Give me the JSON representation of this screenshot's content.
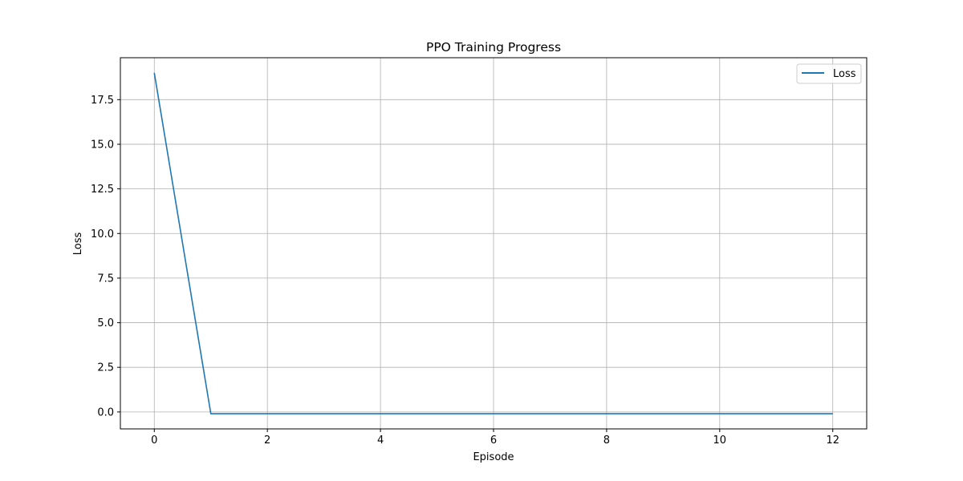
{
  "chart_data": {
    "type": "line",
    "title": "PPO Training Progress",
    "xlabel": "Episode",
    "ylabel": "Loss",
    "xlim": [
      -0.6,
      12.6
    ],
    "ylim": [
      -0.95,
      19.85
    ],
    "xticks": [
      0,
      2,
      4,
      6,
      8,
      10,
      12
    ],
    "xtick_labels": [
      "0",
      "2",
      "4",
      "6",
      "8",
      "10",
      "12"
    ],
    "yticks": [
      0.0,
      2.5,
      5.0,
      7.5,
      10.0,
      12.5,
      15.0,
      17.5
    ],
    "ytick_labels": [
      "0.0",
      "2.5",
      "5.0",
      "7.5",
      "10.0",
      "12.5",
      "15.0",
      "17.5"
    ],
    "grid": true,
    "legend_position": "top-right",
    "series": [
      {
        "name": "Loss",
        "color": "#1f77b4",
        "x": [
          0,
          1,
          2,
          3,
          4,
          5,
          6,
          7,
          8,
          9,
          10,
          11,
          12
        ],
        "y": [
          19.0,
          -0.1,
          -0.1,
          -0.1,
          -0.1,
          -0.1,
          -0.1,
          -0.1,
          -0.1,
          -0.1,
          -0.1,
          -0.1,
          -0.1
        ]
      }
    ]
  }
}
